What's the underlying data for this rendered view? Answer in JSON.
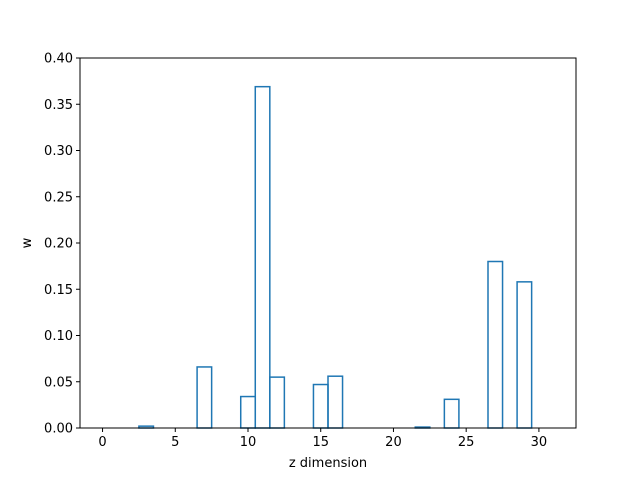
{
  "chart_data": {
    "type": "bar",
    "style": "step-histogram",
    "title": "",
    "xlabel": "z dimension",
    "ylabel": "w",
    "xlim": [
      -1.55,
      32.55
    ],
    "ylim": [
      0.0,
      0.4
    ],
    "xticks": [
      0,
      5,
      10,
      15,
      20,
      25,
      30
    ],
    "xtick_labels": [
      "0",
      "5",
      "10",
      "15",
      "20",
      "25",
      "30"
    ],
    "yticks": [
      0.0,
      0.05,
      0.1,
      0.15,
      0.2,
      0.25,
      0.3,
      0.35,
      0.4
    ],
    "ytick_labels": [
      "0.00",
      "0.05",
      "0.10",
      "0.15",
      "0.20",
      "0.25",
      "0.30",
      "0.35",
      "0.40"
    ],
    "grid": false,
    "legend": false,
    "line_color": "#1f77b4",
    "x": [
      0,
      1,
      2,
      3,
      4,
      5,
      6,
      7,
      8,
      9,
      10,
      11,
      12,
      13,
      14,
      15,
      16,
      17,
      18,
      19,
      20,
      21,
      22,
      23,
      24,
      25,
      26,
      27,
      28,
      29,
      30,
      31
    ],
    "values": [
      0.0,
      0.0,
      0.0,
      0.002,
      0.0,
      0.0,
      0.0,
      0.066,
      0.0,
      0.0,
      0.034,
      0.369,
      0.055,
      0.0,
      0.0,
      0.047,
      0.056,
      0.0,
      0.0,
      0.0,
      0.0,
      0.0,
      0.001,
      0.0,
      0.031,
      0.0,
      0.0,
      0.18,
      0.0,
      0.158,
      0.0,
      0.0
    ]
  }
}
